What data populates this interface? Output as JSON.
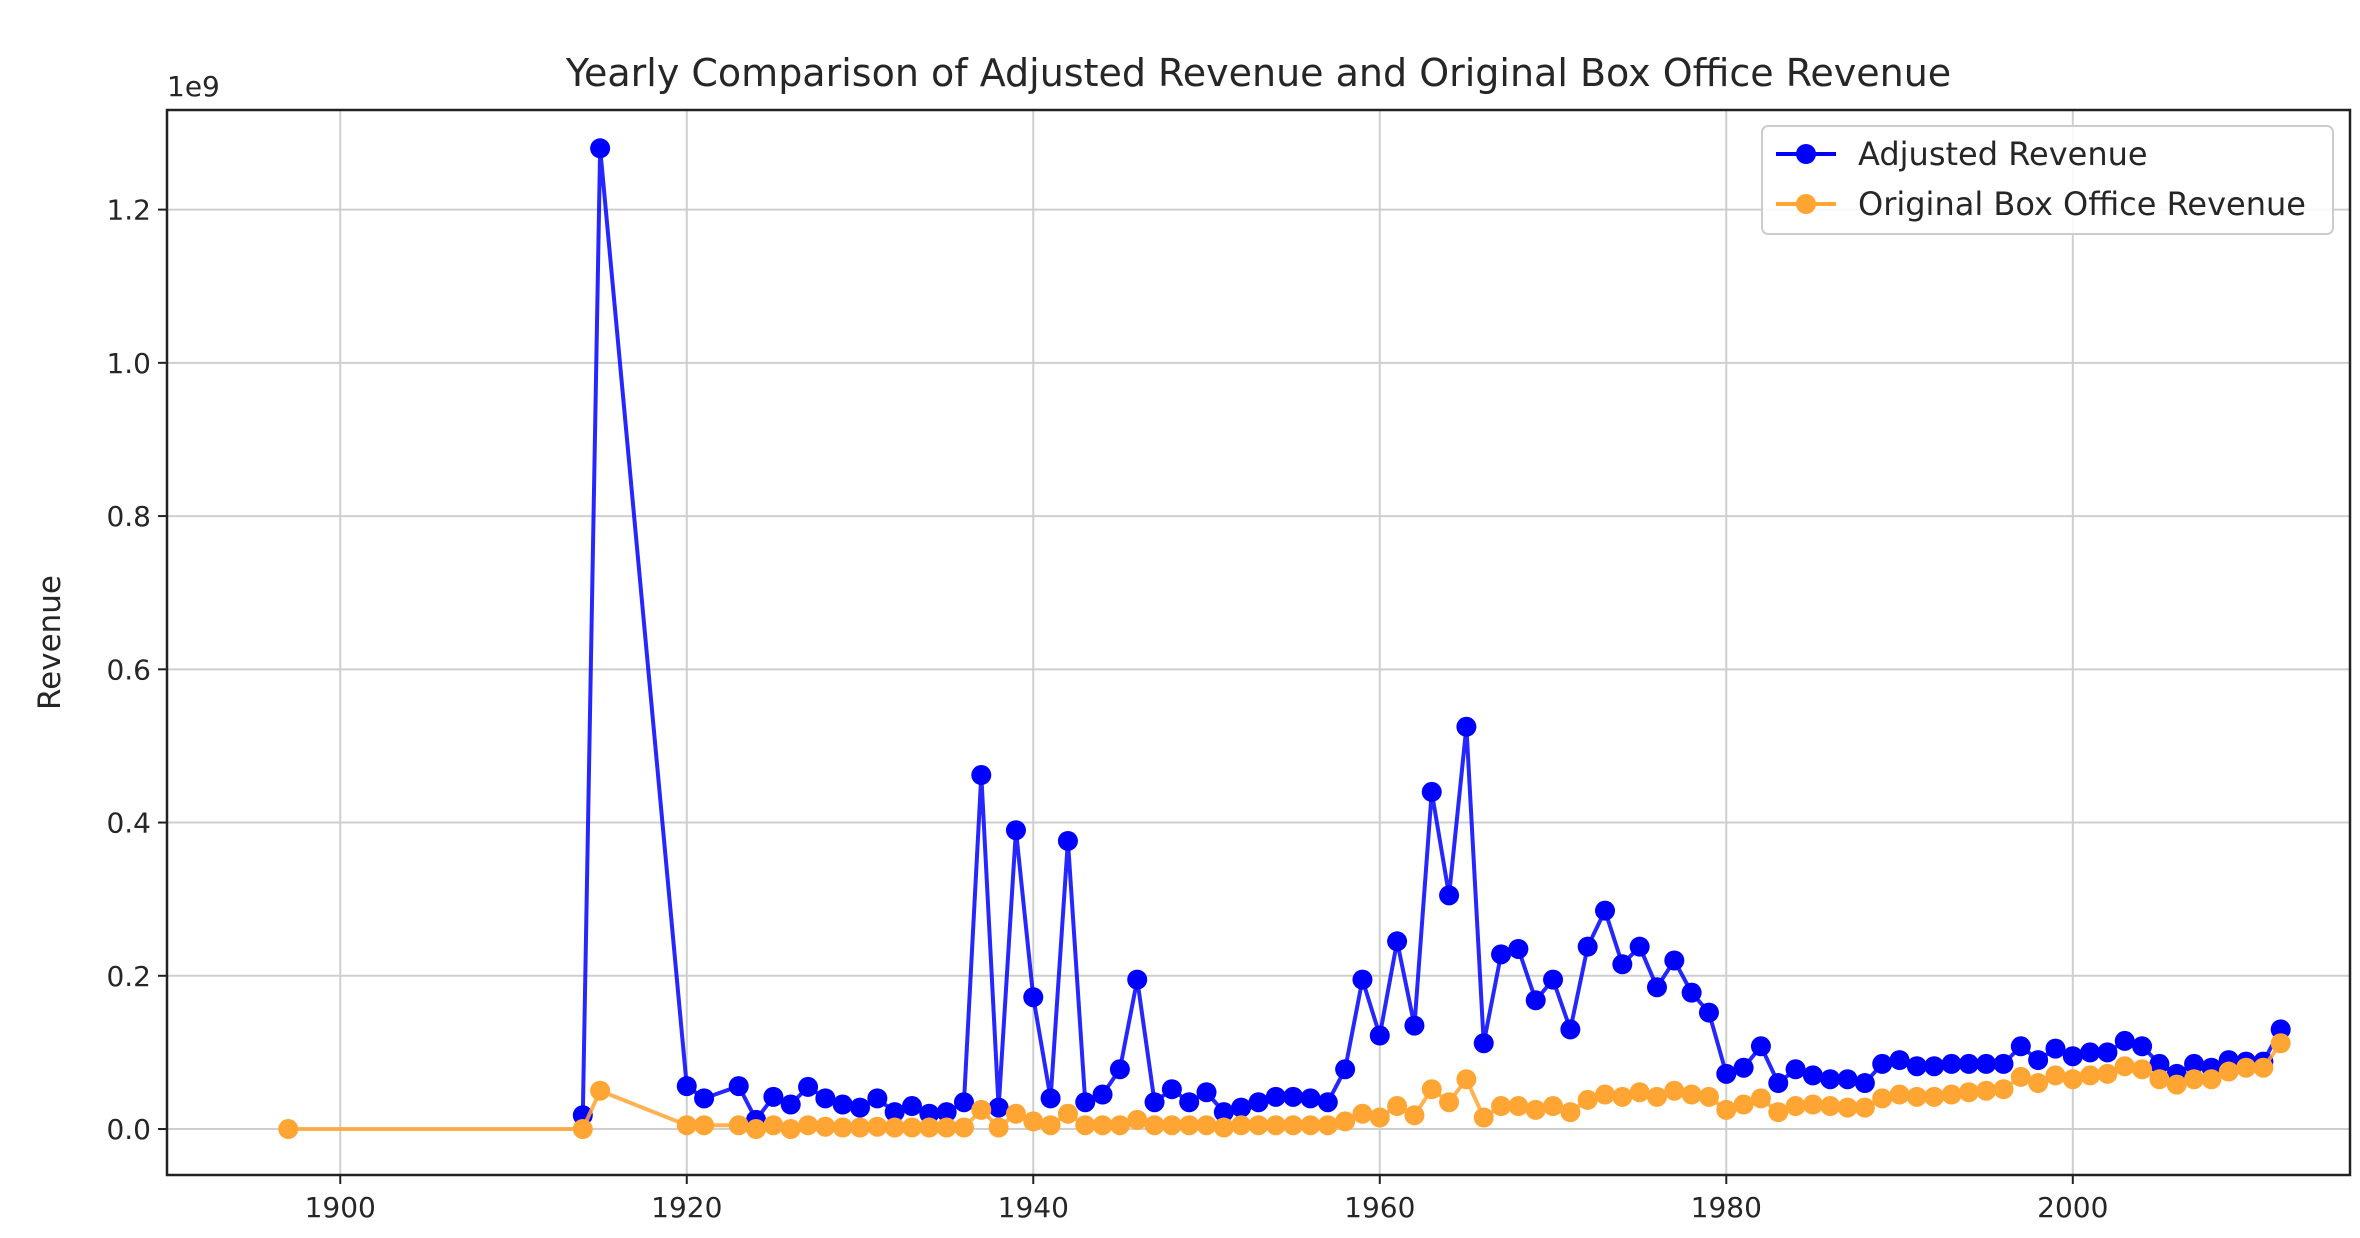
{
  "chart_data": {
    "type": "line",
    "title": "Yearly Comparison of Adjusted Revenue and Original Box Office Revenue",
    "xlabel": "",
    "ylabel": "Revenue",
    "y_offset_label": "1e9",
    "xlim": [
      1890,
      2016
    ],
    "ylim": [
      -0.06,
      1.33
    ],
    "x_ticks": [
      1900,
      1920,
      1940,
      1960,
      1980,
      2000
    ],
    "y_ticks": [
      0.0,
      0.2,
      0.4,
      0.6,
      0.8,
      1.0,
      1.2
    ],
    "x_tick_labels": [
      "1900",
      "1920",
      "1940",
      "1960",
      "1980",
      "2000"
    ],
    "y_tick_labels": [
      "0.0",
      "0.2",
      "0.4",
      "0.6",
      "0.8",
      "1.0",
      "1.2"
    ],
    "grid": true,
    "legend_position": "top-right",
    "series": [
      {
        "name": "Adjusted Revenue",
        "color": "#0000ff",
        "marker": "circle",
        "points": [
          [
            1914,
            0.018
          ],
          [
            1915,
            1.28
          ],
          [
            1920,
            0.056
          ],
          [
            1921,
            0.04
          ],
          [
            1923,
            0.056
          ],
          [
            1924,
            0.012
          ],
          [
            1925,
            0.042
          ],
          [
            1926,
            0.032
          ],
          [
            1927,
            0.055
          ],
          [
            1928,
            0.04
          ],
          [
            1929,
            0.032
          ],
          [
            1930,
            0.028
          ],
          [
            1931,
            0.04
          ],
          [
            1932,
            0.022
          ],
          [
            1933,
            0.03
          ],
          [
            1934,
            0.02
          ],
          [
            1935,
            0.022
          ],
          [
            1936,
            0.035
          ],
          [
            1937,
            0.462
          ],
          [
            1938,
            0.028
          ],
          [
            1939,
            0.39
          ],
          [
            1940,
            0.172
          ],
          [
            1941,
            0.04
          ],
          [
            1942,
            0.376
          ],
          [
            1943,
            0.035
          ],
          [
            1944,
            0.045
          ],
          [
            1945,
            0.078
          ],
          [
            1946,
            0.195
          ],
          [
            1947,
            0.035
          ],
          [
            1948,
            0.052
          ],
          [
            1949,
            0.035
          ],
          [
            1950,
            0.048
          ],
          [
            1951,
            0.022
          ],
          [
            1952,
            0.028
          ],
          [
            1953,
            0.035
          ],
          [
            1954,
            0.042
          ],
          [
            1955,
            0.042
          ],
          [
            1956,
            0.04
          ],
          [
            1957,
            0.035
          ],
          [
            1958,
            0.078
          ],
          [
            1959,
            0.195
          ],
          [
            1960,
            0.122
          ],
          [
            1961,
            0.245
          ],
          [
            1962,
            0.135
          ],
          [
            1963,
            0.44
          ],
          [
            1964,
            0.305
          ],
          [
            1965,
            0.525
          ],
          [
            1966,
            0.112
          ],
          [
            1967,
            0.228
          ],
          [
            1968,
            0.235
          ],
          [
            1969,
            0.168
          ],
          [
            1970,
            0.195
          ],
          [
            1971,
            0.13
          ],
          [
            1972,
            0.238
          ],
          [
            1973,
            0.285
          ],
          [
            1974,
            0.215
          ],
          [
            1975,
            0.238
          ],
          [
            1976,
            0.185
          ],
          [
            1977,
            0.22
          ],
          [
            1978,
            0.178
          ],
          [
            1979,
            0.152
          ],
          [
            1980,
            0.072
          ],
          [
            1981,
            0.08
          ],
          [
            1982,
            0.108
          ],
          [
            1983,
            0.06
          ],
          [
            1984,
            0.078
          ],
          [
            1985,
            0.07
          ],
          [
            1986,
            0.065
          ],
          [
            1987,
            0.065
          ],
          [
            1988,
            0.06
          ],
          [
            1989,
            0.085
          ],
          [
            1990,
            0.09
          ],
          [
            1991,
            0.082
          ],
          [
            1992,
            0.082
          ],
          [
            1993,
            0.085
          ],
          [
            1994,
            0.085
          ],
          [
            1995,
            0.085
          ],
          [
            1996,
            0.085
          ],
          [
            1997,
            0.108
          ],
          [
            1998,
            0.09
          ],
          [
            1999,
            0.105
          ],
          [
            2000,
            0.095
          ],
          [
            2001,
            0.1
          ],
          [
            2002,
            0.1
          ],
          [
            2003,
            0.115
          ],
          [
            2004,
            0.108
          ],
          [
            2005,
            0.085
          ],
          [
            2006,
            0.072
          ],
          [
            2007,
            0.085
          ],
          [
            2008,
            0.08
          ],
          [
            2009,
            0.09
          ],
          [
            2010,
            0.088
          ],
          [
            2011,
            0.088
          ],
          [
            2012,
            0.13
          ]
        ]
      },
      {
        "name": "Original Box Office Revenue",
        "color": "#ffa534",
        "marker": "circle",
        "points": [
          [
            1897,
            0.0
          ],
          [
            1914,
            0.0
          ],
          [
            1915,
            0.05
          ],
          [
            1920,
            0.005
          ],
          [
            1921,
            0.005
          ],
          [
            1923,
            0.005
          ],
          [
            1924,
            0.0
          ],
          [
            1925,
            0.005
          ],
          [
            1926,
            0.0
          ],
          [
            1927,
            0.005
          ],
          [
            1928,
            0.003
          ],
          [
            1929,
            0.002
          ],
          [
            1930,
            0.002
          ],
          [
            1931,
            0.003
          ],
          [
            1932,
            0.002
          ],
          [
            1933,
            0.002
          ],
          [
            1934,
            0.002
          ],
          [
            1935,
            0.002
          ],
          [
            1936,
            0.002
          ],
          [
            1937,
            0.025
          ],
          [
            1938,
            0.002
          ],
          [
            1939,
            0.02
          ],
          [
            1940,
            0.01
          ],
          [
            1941,
            0.005
          ],
          [
            1942,
            0.02
          ],
          [
            1943,
            0.005
          ],
          [
            1944,
            0.005
          ],
          [
            1945,
            0.005
          ],
          [
            1946,
            0.012
          ],
          [
            1947,
            0.005
          ],
          [
            1948,
            0.005
          ],
          [
            1949,
            0.005
          ],
          [
            1950,
            0.005
          ],
          [
            1951,
            0.002
          ],
          [
            1952,
            0.005
          ],
          [
            1953,
            0.005
          ],
          [
            1954,
            0.005
          ],
          [
            1955,
            0.005
          ],
          [
            1956,
            0.005
          ],
          [
            1957,
            0.005
          ],
          [
            1958,
            0.01
          ],
          [
            1959,
            0.02
          ],
          [
            1960,
            0.015
          ],
          [
            1961,
            0.03
          ],
          [
            1962,
            0.018
          ],
          [
            1963,
            0.052
          ],
          [
            1964,
            0.035
          ],
          [
            1965,
            0.065
          ],
          [
            1966,
            0.015
          ],
          [
            1967,
            0.03
          ],
          [
            1968,
            0.03
          ],
          [
            1969,
            0.025
          ],
          [
            1970,
            0.03
          ],
          [
            1971,
            0.022
          ],
          [
            1972,
            0.038
          ],
          [
            1973,
            0.045
          ],
          [
            1974,
            0.042
          ],
          [
            1975,
            0.048
          ],
          [
            1976,
            0.042
          ],
          [
            1977,
            0.05
          ],
          [
            1978,
            0.045
          ],
          [
            1979,
            0.042
          ],
          [
            1980,
            0.025
          ],
          [
            1981,
            0.032
          ],
          [
            1982,
            0.04
          ],
          [
            1983,
            0.022
          ],
          [
            1984,
            0.03
          ],
          [
            1985,
            0.032
          ],
          [
            1986,
            0.03
          ],
          [
            1987,
            0.028
          ],
          [
            1988,
            0.028
          ],
          [
            1989,
            0.04
          ],
          [
            1990,
            0.045
          ],
          [
            1991,
            0.042
          ],
          [
            1992,
            0.042
          ],
          [
            1993,
            0.045
          ],
          [
            1994,
            0.048
          ],
          [
            1995,
            0.05
          ],
          [
            1996,
            0.052
          ],
          [
            1997,
            0.068
          ],
          [
            1998,
            0.06
          ],
          [
            1999,
            0.07
          ],
          [
            2000,
            0.065
          ],
          [
            2001,
            0.07
          ],
          [
            2002,
            0.072
          ],
          [
            2003,
            0.082
          ],
          [
            2004,
            0.078
          ],
          [
            2005,
            0.065
          ],
          [
            2006,
            0.058
          ],
          [
            2007,
            0.065
          ],
          [
            2008,
            0.065
          ],
          [
            2009,
            0.075
          ],
          [
            2010,
            0.08
          ],
          [
            2011,
            0.08
          ],
          [
            2012,
            0.112
          ]
        ]
      }
    ]
  }
}
